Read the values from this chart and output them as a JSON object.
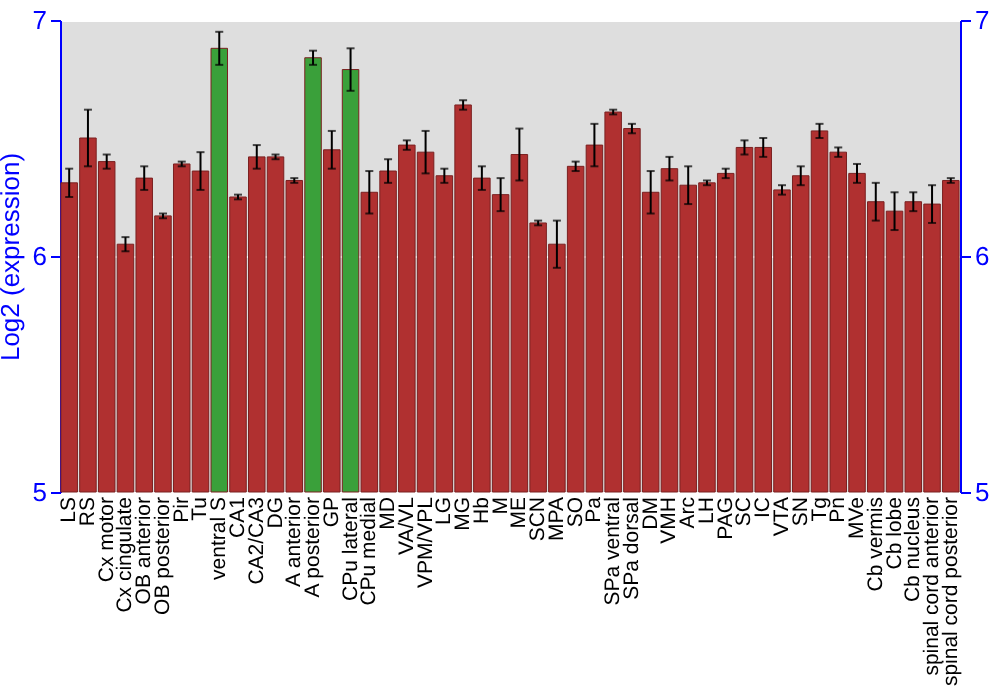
{
  "chart_data": {
    "type": "bar",
    "ylabel": "Log2 (expression)",
    "categories": [
      "LS",
      "RS",
      "Cx motor",
      "Cx cingulate",
      "OB anterior",
      "OB posterior",
      "Pir",
      "Tu",
      "ventral S",
      "CA1",
      "CA2/CA3",
      "DG",
      "A anterior",
      "A posterior",
      "GP",
      "CPu lateral",
      "CPu medial",
      "MD",
      "VA/VL",
      "VPM/VPL",
      "LG",
      "MG",
      "Hb",
      "M",
      "ME",
      "SCN",
      "MPA",
      "SO",
      "Pa",
      "SPa ventral",
      "SPa dorsal",
      "DM",
      "VMH",
      "Arc",
      "LH",
      "PAG",
      "SC",
      "IC",
      "VTA",
      "SN",
      "Tg",
      "Pn",
      "MVe",
      "Cb vermis",
      "Cb lobe",
      "Cb nucleus",
      "spinal cord anterior",
      "spinal cord posterior"
    ],
    "values": [
      6.31,
      6.5,
      6.4,
      6.05,
      6.33,
      6.17,
      6.39,
      6.36,
      6.88,
      6.25,
      6.42,
      6.42,
      6.32,
      6.84,
      6.45,
      6.79,
      6.27,
      6.36,
      6.47,
      6.44,
      6.34,
      6.64,
      6.33,
      6.26,
      6.43,
      6.14,
      6.05,
      6.38,
      6.47,
      6.61,
      6.54,
      6.27,
      6.37,
      6.3,
      6.31,
      6.35,
      6.46,
      6.46,
      6.28,
      6.34,
      6.53,
      6.44,
      6.35,
      6.23,
      6.19,
      6.23,
      6.22,
      6.32
    ],
    "errors": [
      0.06,
      0.12,
      0.03,
      0.03,
      0.05,
      0.01,
      0.01,
      0.08,
      0.07,
      0.01,
      0.05,
      0.01,
      0.01,
      0.03,
      0.08,
      0.09,
      0.09,
      0.05,
      0.02,
      0.09,
      0.03,
      0.02,
      0.05,
      0.07,
      0.11,
      0.01,
      0.1,
      0.02,
      0.09,
      0.01,
      0.02,
      0.09,
      0.05,
      0.08,
      0.01,
      0.02,
      0.03,
      0.04,
      0.02,
      0.04,
      0.03,
      0.02,
      0.04,
      0.08,
      0.08,
      0.04,
      0.08,
      0.01
    ],
    "colors": [
      "#b03030",
      "#b03030",
      "#b03030",
      "#b03030",
      "#b03030",
      "#b03030",
      "#b03030",
      "#b03030",
      "#3aa03a",
      "#b03030",
      "#b03030",
      "#b03030",
      "#b03030",
      "#3aa03a",
      "#b03030",
      "#3aa03a",
      "#b03030",
      "#b03030",
      "#b03030",
      "#b03030",
      "#b03030",
      "#b03030",
      "#b03030",
      "#b03030",
      "#b03030",
      "#b03030",
      "#b03030",
      "#b03030",
      "#b03030",
      "#b03030",
      "#b03030",
      "#b03030",
      "#b03030",
      "#b03030",
      "#b03030",
      "#b03030",
      "#b03030",
      "#b03030",
      "#b03030",
      "#b03030",
      "#b03030",
      "#b03030",
      "#b03030",
      "#b03030",
      "#b03030",
      "#b03030",
      "#b03030",
      "#b03030"
    ],
    "ylim": [
      5,
      7
    ],
    "yticks": [
      5,
      6,
      7
    ],
    "y2lim": [
      5,
      7
    ],
    "y2ticks": [
      5,
      6,
      7
    ],
    "grid": "y"
  }
}
